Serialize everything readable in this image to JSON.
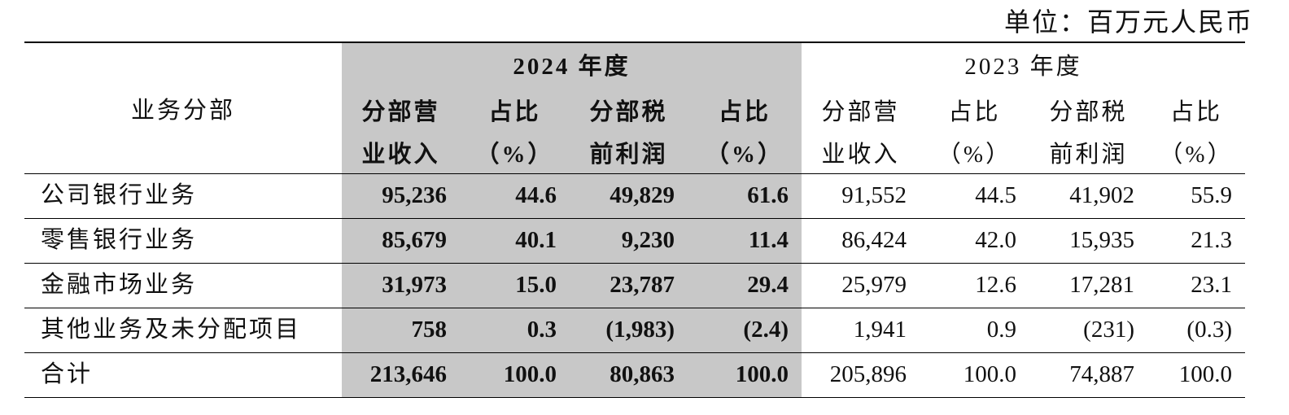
{
  "unit": "单位：百万元人民币",
  "table": {
    "header": {
      "segment": "业务分部",
      "years": [
        {
          "label": "2024 年度",
          "columns": [
            [
              "分部营",
              "业收入"
            ],
            [
              "占比",
              "（%）"
            ],
            [
              "分部税",
              "前利润"
            ],
            [
              "占比",
              "（%）"
            ]
          ]
        },
        {
          "label": "2023 年度",
          "columns": [
            [
              "分部营",
              "业收入"
            ],
            [
              "占比",
              "（%）"
            ],
            [
              "分部税",
              "前利润"
            ],
            [
              "占比",
              "（%）"
            ]
          ]
        }
      ]
    },
    "rows": [
      [
        "公司银行业务",
        "95,236",
        "44.6",
        "49,829",
        "61.6",
        "91,552",
        "44.5",
        "41,902",
        "55.9"
      ],
      [
        "零售银行业务",
        "85,679",
        "40.1",
        "9,230",
        "11.4",
        "86,424",
        "42.0",
        "15,935",
        "21.3"
      ],
      [
        "金融市场业务",
        "31,973",
        "15.0",
        "23,787",
        "29.4",
        "25,979",
        "12.6",
        "17,281",
        "23.1"
      ],
      [
        "其他业务及未分配项目",
        "758",
        "0.3",
        "(1,983)",
        "(2.4)",
        "1,941",
        "0.9",
        "(231)",
        "(0.3)"
      ],
      [
        "合计",
        "213,646",
        "100.0",
        "80,863",
        "100.0",
        "205,896",
        "100.0",
        "74,887",
        "100.0"
      ]
    ]
  }
}
